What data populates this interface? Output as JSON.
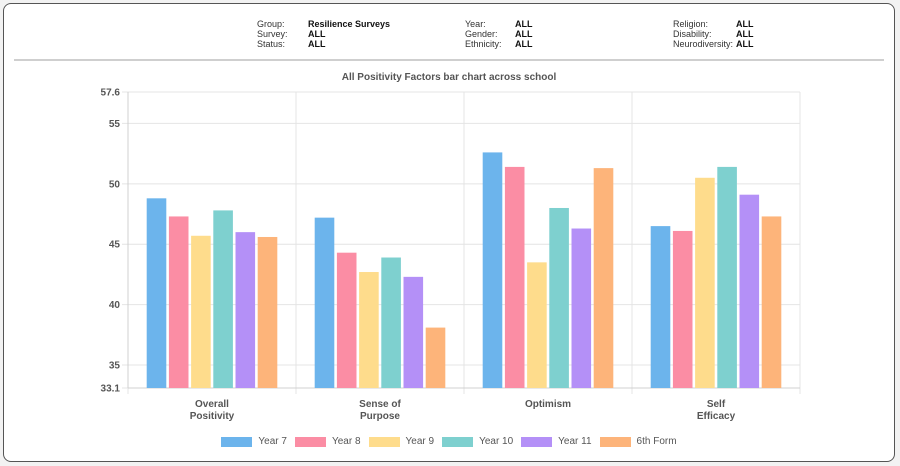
{
  "filters": {
    "group": {
      "label": "Group:",
      "value": "Resilience Surveys"
    },
    "survey": {
      "label": "Survey:",
      "value": "ALL"
    },
    "status": {
      "label": "Status:",
      "value": "ALL"
    },
    "year": {
      "label": "Year:",
      "value": "ALL"
    },
    "gender": {
      "label": "Gender:",
      "value": "ALL"
    },
    "ethnicity": {
      "label": "Ethnicity:",
      "value": "ALL"
    },
    "religion": {
      "label": "Religion:",
      "value": "ALL"
    },
    "disability": {
      "label": "Disability:",
      "value": "ALL"
    },
    "neurodiversity": {
      "label": "Neurodiversity:",
      "value": "ALL"
    }
  },
  "colors": {
    "year7": "#6cb4ec",
    "year8": "#fb8da4",
    "year9": "#fedc8c",
    "year10": "#7ed0cf",
    "year11": "#b490f7",
    "form6": "#fdb47a"
  },
  "chart_data": {
    "type": "bar",
    "title": "All Positivity Factors bar chart across school",
    "xlabel": "",
    "ylabel": "",
    "ylim": [
      33.1,
      57.6
    ],
    "yticks": [
      "33.1",
      "35",
      "40",
      "45",
      "50",
      "55",
      "57.6"
    ],
    "categories": [
      [
        "Overall",
        "Positivity"
      ],
      [
        "Sense of",
        "Purpose"
      ],
      [
        "Optimism"
      ],
      [
        "Self",
        "Efficacy"
      ]
    ],
    "series": [
      {
        "name": "Year 7",
        "color": "#6cb4ec",
        "values": [
          48.8,
          47.2,
          52.6,
          46.5
        ]
      },
      {
        "name": "Year 8",
        "color": "#fb8da4",
        "values": [
          47.3,
          44.3,
          51.4,
          46.1
        ]
      },
      {
        "name": "Year 9",
        "color": "#fedc8c",
        "values": [
          45.7,
          42.7,
          43.5,
          50.5
        ]
      },
      {
        "name": "Year 10",
        "color": "#7ed0cf",
        "values": [
          47.8,
          43.9,
          48.0,
          51.4
        ]
      },
      {
        "name": "Year 11",
        "color": "#b490f7",
        "values": [
          46.0,
          42.3,
          46.3,
          49.1
        ]
      },
      {
        "name": "6th Form",
        "color": "#fdb47a",
        "values": [
          45.6,
          38.1,
          51.3,
          47.3
        ]
      }
    ],
    "grid": true,
    "legend": "bottom"
  }
}
